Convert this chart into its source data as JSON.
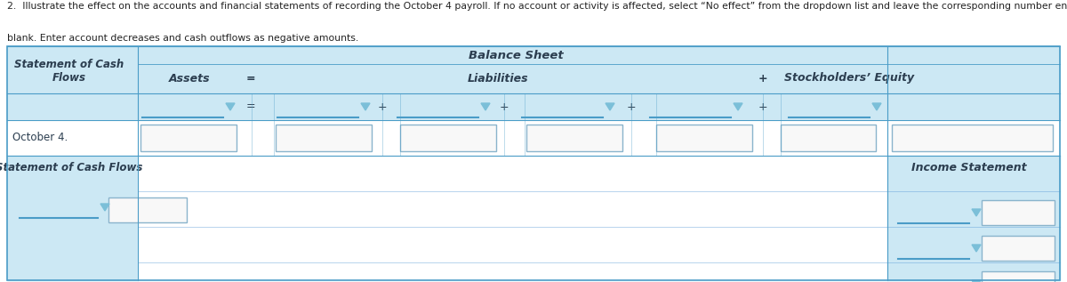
{
  "title_line1": "2.  Illustrate the effect on the accounts and financial statements of recording the October 4 payroll. If no account or activity is affected, select “No effect” from the dropdown list and leave the corresponding number entry box",
  "title_line2": "blank. Enter account decreases and cash outflows as negative amounts.",
  "balance_sheet_label": "Balance Sheet",
  "assets_label": "Assets",
  "liabilities_label": "Liabilities",
  "stockholders_label": "Stockholders’ Equity",
  "stmt_cash_label": "Statement of Cash\nFlows",
  "stmt_cash_label2": "Statement of Cash Flows",
  "income_stmt_label": "Income Statement",
  "october4_label": "October 4.",
  "eq_sign": "=",
  "plus_sign": "+",
  "c_bg_blue": "#cce8f4",
  "c_mid_blue": "#7bbfd8",
  "c_dark_blue": "#4a9cc7",
  "c_white": "#ffffff",
  "c_border": "#5b9bd5",
  "c_text": "#2c3e50",
  "c_box_edge": "#8ab4cc",
  "c_box_face": "#f8f8f8",
  "fig_width": 12.0,
  "fig_height": 3.17
}
